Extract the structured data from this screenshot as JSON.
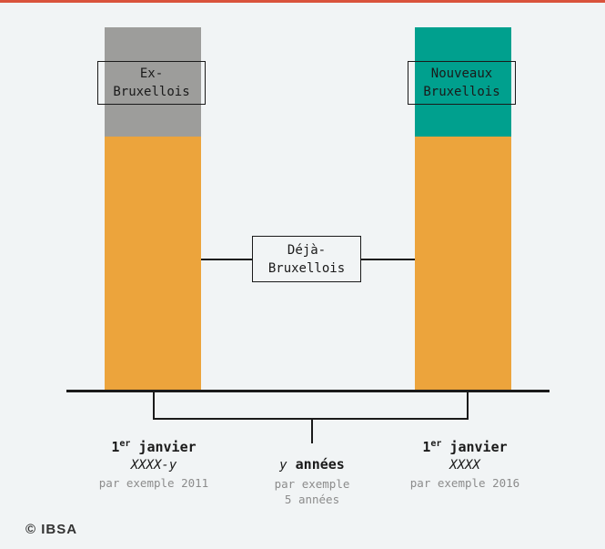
{
  "colors": {
    "top_rule": "#d9533c",
    "ex_bruxellois": "#9d9d9b",
    "nouveaux_bruxellois": "#00a08e",
    "deja_bruxellois": "#eca43c",
    "background": "#f1f4f5"
  },
  "left_bar": {
    "label_line1": "Ex-",
    "label_line2": "Bruxellois"
  },
  "right_bar": {
    "label_line1": "Nouveaux",
    "label_line2": "Bruxellois"
  },
  "middle": {
    "label_line1": "Déjà-",
    "label_line2": "Bruxellois"
  },
  "left_date": {
    "day": "1",
    "day_suffix": "er",
    "month": " janvier",
    "year": "XXXX-y",
    "example": "par exemple 2011"
  },
  "center": {
    "var": "y",
    "word": " années",
    "example_line1": "par exemple",
    "example_line2": "5 années"
  },
  "right_date": {
    "day": "1",
    "day_suffix": "er",
    "month": " janvier",
    "year": "XXXX",
    "example": "par exemple 2016"
  },
  "logo": "© IBSA"
}
